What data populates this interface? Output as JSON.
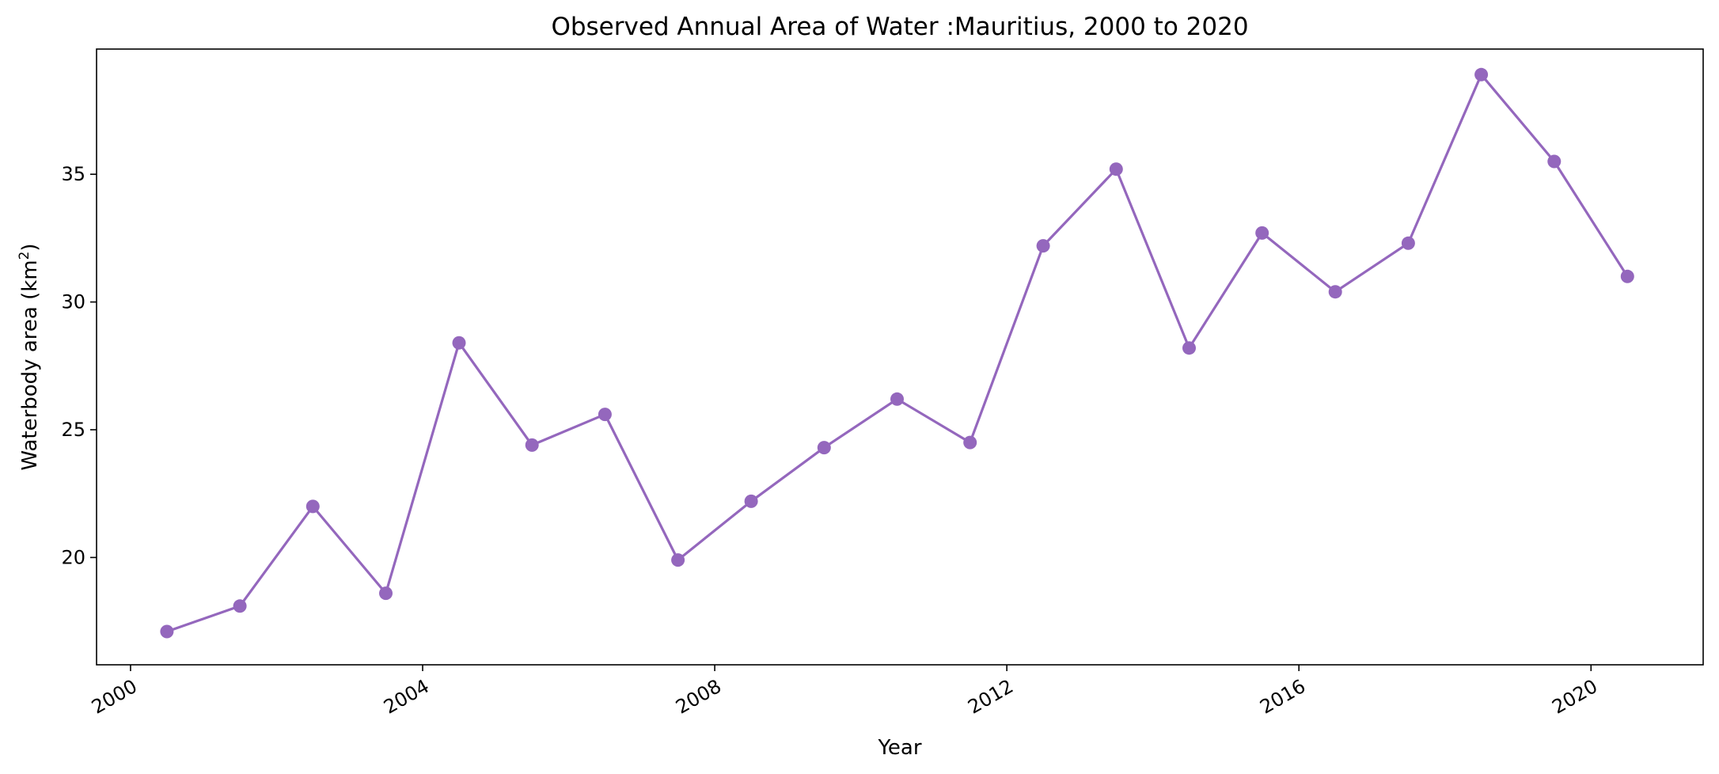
{
  "chart_data": {
    "type": "line",
    "title": "Observed Annual Area of Water :Mauritius, 2000 to 2020",
    "xlabel": "Year",
    "ylabel_main": "Waterbody area (km",
    "ylabel_sup": "2",
    "ylabel_close": ")",
    "xlim": [
      "1999-07-15",
      "2021-07-15"
    ],
    "ylim": [
      15.8,
      39.9
    ],
    "x_ticks": [
      {
        "value": "2000-01-01",
        "label": "2000"
      },
      {
        "value": "2004-01-01",
        "label": "2004"
      },
      {
        "value": "2008-01-01",
        "label": "2008"
      },
      {
        "value": "2012-01-01",
        "label": "2012"
      },
      {
        "value": "2016-01-01",
        "label": "2016"
      },
      {
        "value": "2020-01-01",
        "label": "2020"
      }
    ],
    "y_ticks": [
      {
        "value": 20,
        "label": "20"
      },
      {
        "value": 25,
        "label": "25"
      },
      {
        "value": 30,
        "label": "30"
      },
      {
        "value": 35,
        "label": "35"
      }
    ],
    "grid": false,
    "legend": "none",
    "series": [
      {
        "color": "#9467bd",
        "marker": "circle",
        "points": [
          {
            "x": "2000-07-01",
            "y": 17.1
          },
          {
            "x": "2001-07-01",
            "y": 18.1
          },
          {
            "x": "2002-07-01",
            "y": 22.0
          },
          {
            "x": "2003-07-01",
            "y": 18.6
          },
          {
            "x": "2004-07-01",
            "y": 28.4
          },
          {
            "x": "2005-07-01",
            "y": 24.4
          },
          {
            "x": "2006-07-01",
            "y": 25.6
          },
          {
            "x": "2007-07-01",
            "y": 19.9
          },
          {
            "x": "2008-07-01",
            "y": 22.2
          },
          {
            "x": "2009-07-01",
            "y": 24.3
          },
          {
            "x": "2010-07-01",
            "y": 26.2
          },
          {
            "x": "2011-07-01",
            "y": 24.5
          },
          {
            "x": "2012-07-01",
            "y": 32.2
          },
          {
            "x": "2013-07-01",
            "y": 35.2
          },
          {
            "x": "2014-07-01",
            "y": 28.2
          },
          {
            "x": "2015-07-01",
            "y": 32.7
          },
          {
            "x": "2016-07-01",
            "y": 30.4
          },
          {
            "x": "2017-07-01",
            "y": 32.3
          },
          {
            "x": "2018-07-01",
            "y": 38.9
          },
          {
            "x": "2019-07-01",
            "y": 35.5
          },
          {
            "x": "2020-07-01",
            "y": 31.0
          }
        ]
      }
    ]
  }
}
